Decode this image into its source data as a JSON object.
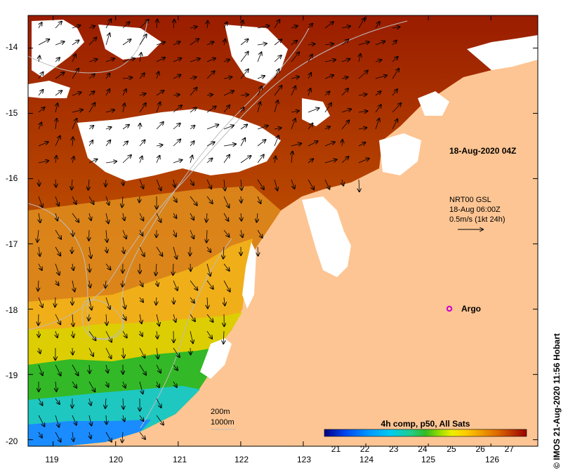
{
  "map": {
    "lon_ticks": [
      "119",
      "120",
      "121",
      "122",
      "123",
      "124",
      "125",
      "126"
    ],
    "lat_ticks": [
      "-14",
      "-15",
      "-16",
      "-17",
      "-18",
      "-19",
      "-20"
    ],
    "lon_range": [
      118.6,
      126.75
    ],
    "lat_range": [
      -20.1,
      -13.5
    ]
  },
  "annotations": {
    "timestamp": "18-Aug-2020 04Z",
    "current_source": "NRT00 GSL",
    "current_time": "18-Aug 06:00Z",
    "current_scale": "0.5m/s (1kt 24h)",
    "argo_label": "Argo",
    "credit": "© IMOS 21-Aug-2020 11:56 Hobart"
  },
  "legend": {
    "title": "4h comp, p50, All Sats",
    "ticks": [
      "21",
      "22",
      "23",
      "24",
      "25",
      "26",
      "27"
    ],
    "range": [
      20.6,
      27.6
    ]
  },
  "contour_legend": {
    "line1": "200m",
    "line2": "1000m"
  },
  "colors": {
    "land": "#fdc593",
    "cloud": "#ffffff",
    "argo_marker": "#cc00cc",
    "contour": "#b9b9b9",
    "sst_scale": [
      "#000080",
      "#0044ee",
      "#0099ff",
      "#00ccee",
      "#22cc88",
      "#33bb22",
      "#99dd00",
      "#eeee00",
      "#ffcc00",
      "#ee9900",
      "#dd6600",
      "#bb3300",
      "#990000"
    ]
  }
}
